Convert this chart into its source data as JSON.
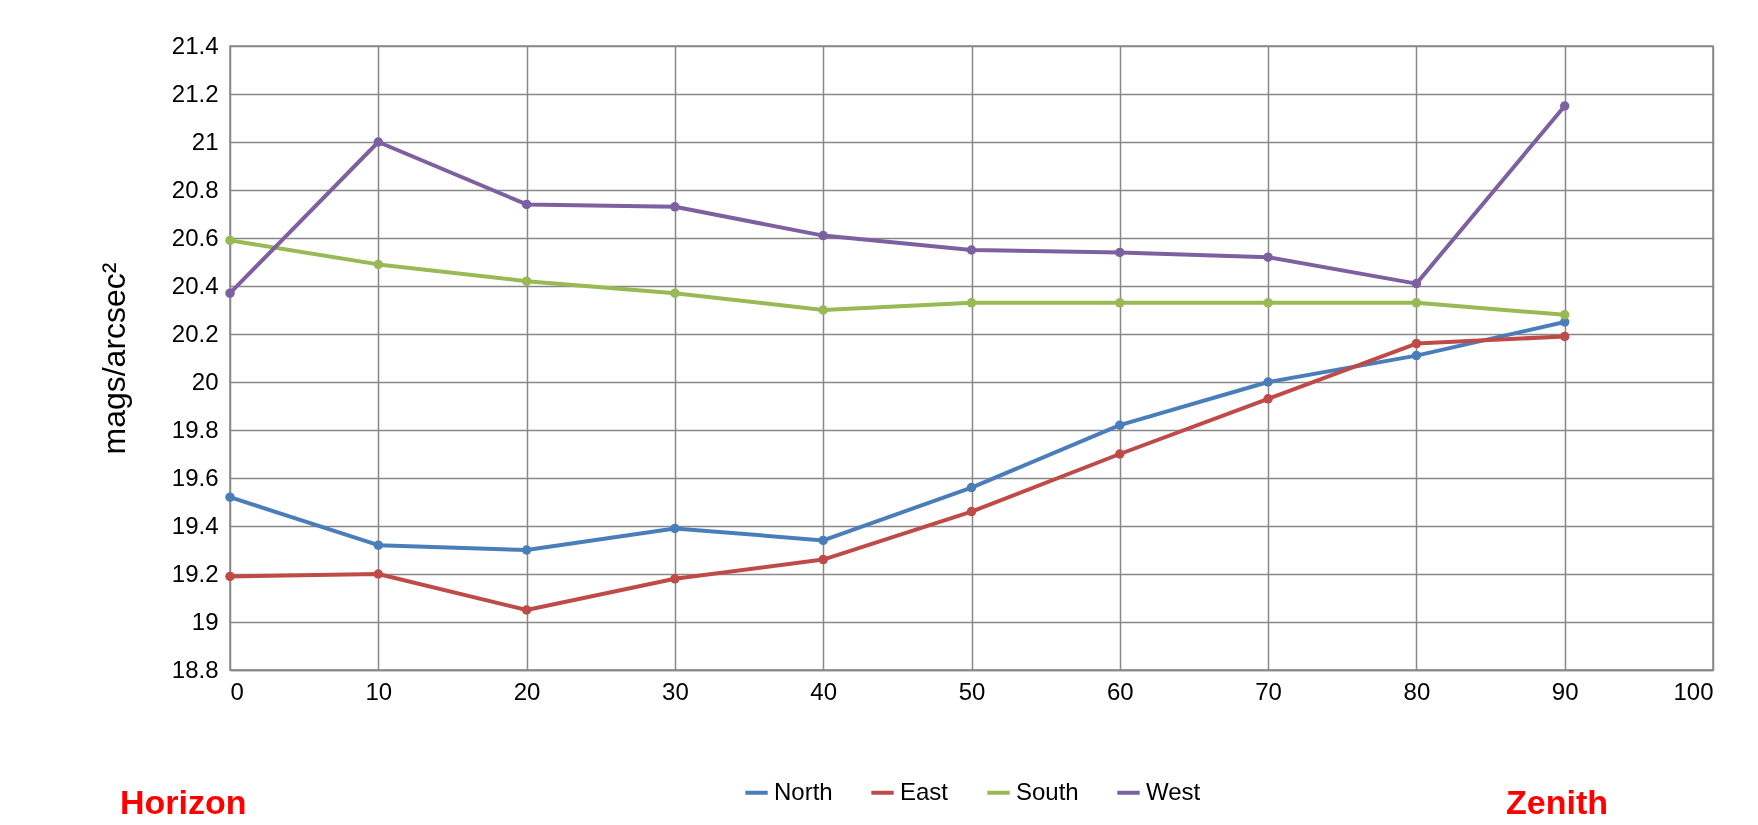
{
  "chart_data": {
    "type": "line",
    "ylabel": "mags/arcsec²",
    "x": [
      0,
      10,
      20,
      30,
      40,
      50,
      60,
      70,
      80,
      90
    ],
    "series": [
      {
        "name": "North",
        "color": "#4a7ebb",
        "values": [
          19.52,
          19.32,
          19.3,
          19.39,
          19.34,
          19.56,
          19.82,
          20.0,
          20.11,
          20.25
        ]
      },
      {
        "name": "East",
        "color": "#be4b48",
        "values": [
          19.19,
          19.2,
          19.05,
          19.18,
          19.26,
          19.46,
          19.7,
          19.93,
          20.16,
          20.19
        ]
      },
      {
        "name": "South",
        "color": "#98b954",
        "values": [
          20.59,
          20.49,
          20.42,
          20.37,
          20.3,
          20.33,
          20.33,
          20.33,
          20.33,
          20.28
        ]
      },
      {
        "name": "West",
        "color": "#7d60a0",
        "values": [
          20.37,
          21.0,
          20.74,
          20.73,
          20.61,
          20.55,
          20.54,
          20.52,
          20.41,
          21.15
        ]
      }
    ],
    "xlim": [
      0,
      100
    ],
    "xticks": [
      0,
      10,
      20,
      30,
      40,
      50,
      60,
      70,
      80,
      90,
      100
    ],
    "ylim": [
      18.8,
      21.4
    ],
    "yticks": [
      18.8,
      19,
      19.2,
      19.4,
      19.6,
      19.8,
      20,
      20.2,
      20.4,
      20.6,
      20.8,
      21,
      21.2,
      21.4
    ],
    "grid": true,
    "legend": "bottom",
    "marker": "circle",
    "line_style": "solid",
    "annotations": [
      "Horizon",
      "Zenith"
    ]
  }
}
